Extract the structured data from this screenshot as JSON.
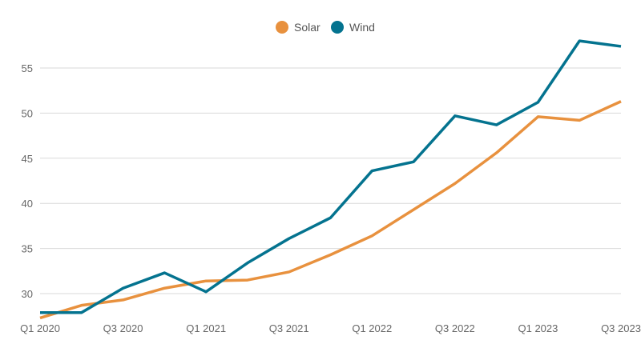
{
  "chart_data": {
    "type": "line",
    "title": "",
    "xlabel": "",
    "ylabel": "",
    "categories": [
      "Q1 2020",
      "Q2 2020",
      "Q3 2020",
      "Q4 2020",
      "Q1 2021",
      "Q2 2021",
      "Q3 2021",
      "Q4 2021",
      "Q1 2022",
      "Q2 2022",
      "Q3 2022",
      "Q4 2022",
      "Q1 2023",
      "Q2 2023",
      "Q3 2023"
    ],
    "x_tick_labels": [
      "Q1 2020",
      "",
      "Q3 2020",
      "",
      "Q1 2021",
      "",
      "Q3 2021",
      "",
      "Q1 2022",
      "",
      "Q3 2022",
      "",
      "Q1 2023",
      "",
      "Q3 2023"
    ],
    "y_ticks": [
      30,
      35,
      40,
      45,
      50,
      55
    ],
    "ylim": [
      27.5,
      58
    ],
    "grid": "horizontal",
    "legend_position": "top-center",
    "series": [
      {
        "name": "Solar",
        "color": "#E8913E",
        "values": [
          27.3,
          28.7,
          29.3,
          30.6,
          31.4,
          31.5,
          32.4,
          34.3,
          36.4,
          39.3,
          42.2,
          45.6,
          49.6,
          49.2,
          51.3
        ]
      },
      {
        "name": "Wind",
        "color": "#04738F",
        "values": [
          27.9,
          27.9,
          30.6,
          32.3,
          30.2,
          33.4,
          36.1,
          38.4,
          43.6,
          44.6,
          49.7,
          48.7,
          51.2,
          58.0,
          57.4
        ]
      }
    ]
  }
}
